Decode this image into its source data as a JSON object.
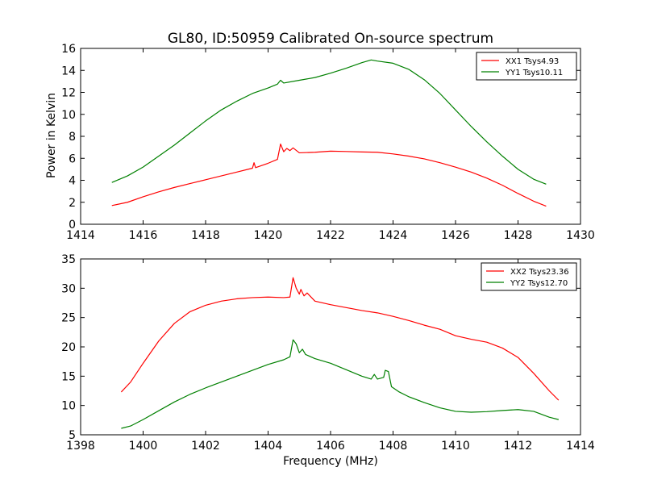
{
  "chart_data": [
    {
      "type": "line",
      "title": "GL80, ID:50959 Calibrated On-source spectrum",
      "xlabel": "",
      "ylabel": "Power in Kelvin",
      "xlim": [
        1414,
        1430
      ],
      "ylim": [
        0,
        16
      ],
      "xticks": [
        1414,
        1416,
        1418,
        1420,
        1422,
        1424,
        1426,
        1428,
        1430
      ],
      "yticks": [
        0,
        2,
        4,
        6,
        8,
        10,
        12,
        14,
        16
      ],
      "legend_position": "top-right",
      "series": [
        {
          "name": "XX1 Tsys4.93",
          "color": "#ff0000",
          "points": [
            [
              1415.0,
              1.7
            ],
            [
              1415.5,
              2.0
            ],
            [
              1416.0,
              2.5
            ],
            [
              1416.5,
              2.95
            ],
            [
              1417.0,
              3.35
            ],
            [
              1417.5,
              3.7
            ],
            [
              1418.0,
              4.05
            ],
            [
              1418.5,
              4.4
            ],
            [
              1419.0,
              4.75
            ],
            [
              1419.5,
              5.1
            ],
            [
              1419.55,
              5.6
            ],
            [
              1419.6,
              5.15
            ],
            [
              1420.0,
              5.55
            ],
            [
              1420.3,
              5.9
            ],
            [
              1420.4,
              7.3
            ],
            [
              1420.5,
              6.6
            ],
            [
              1420.6,
              6.9
            ],
            [
              1420.7,
              6.7
            ],
            [
              1420.8,
              6.95
            ],
            [
              1421.0,
              6.5
            ],
            [
              1421.5,
              6.55
            ],
            [
              1422.0,
              6.65
            ],
            [
              1422.5,
              6.62
            ],
            [
              1423.0,
              6.58
            ],
            [
              1423.5,
              6.55
            ],
            [
              1424.0,
              6.4
            ],
            [
              1424.5,
              6.2
            ],
            [
              1425.0,
              5.95
            ],
            [
              1425.5,
              5.6
            ],
            [
              1426.0,
              5.2
            ],
            [
              1426.5,
              4.75
            ],
            [
              1427.0,
              4.2
            ],
            [
              1427.5,
              3.55
            ],
            [
              1428.0,
              2.8
            ],
            [
              1428.5,
              2.1
            ],
            [
              1428.9,
              1.65
            ]
          ]
        },
        {
          "name": "YY1 Tsys10.11",
          "color": "#008000",
          "points": [
            [
              1415.0,
              3.8
            ],
            [
              1415.5,
              4.4
            ],
            [
              1416.0,
              5.2
            ],
            [
              1416.5,
              6.2
            ],
            [
              1417.0,
              7.2
            ],
            [
              1417.5,
              8.3
            ],
            [
              1418.0,
              9.4
            ],
            [
              1418.5,
              10.4
            ],
            [
              1419.0,
              11.2
            ],
            [
              1419.5,
              11.9
            ],
            [
              1420.0,
              12.4
            ],
            [
              1420.3,
              12.75
            ],
            [
              1420.4,
              13.1
            ],
            [
              1420.5,
              12.85
            ],
            [
              1421.0,
              13.1
            ],
            [
              1421.5,
              13.35
            ],
            [
              1422.0,
              13.75
            ],
            [
              1422.5,
              14.2
            ],
            [
              1423.0,
              14.7
            ],
            [
              1423.3,
              14.95
            ],
            [
              1423.5,
              14.85
            ],
            [
              1424.0,
              14.65
            ],
            [
              1424.5,
              14.1
            ],
            [
              1425.0,
              13.15
            ],
            [
              1425.5,
              11.9
            ],
            [
              1426.0,
              10.4
            ],
            [
              1426.5,
              8.9
            ],
            [
              1427.0,
              7.5
            ],
            [
              1427.5,
              6.2
            ],
            [
              1428.0,
              5.0
            ],
            [
              1428.5,
              4.1
            ],
            [
              1428.9,
              3.65
            ]
          ]
        }
      ]
    },
    {
      "type": "line",
      "title": "",
      "xlabel": "Frequency (MHz)",
      "ylabel": "",
      "xlim": [
        1398,
        1414
      ],
      "ylim": [
        5,
        35
      ],
      "xticks": [
        1398,
        1400,
        1402,
        1404,
        1406,
        1408,
        1410,
        1412,
        1414
      ],
      "yticks": [
        5,
        10,
        15,
        20,
        25,
        30,
        35
      ],
      "legend_position": "top-right",
      "series": [
        {
          "name": "XX2 Tsys23.36",
          "color": "#ff0000",
          "points": [
            [
              1399.3,
              12.3
            ],
            [
              1399.6,
              14.0
            ],
            [
              1400.0,
              17.2
            ],
            [
              1400.5,
              21.0
            ],
            [
              1401.0,
              24.0
            ],
            [
              1401.5,
              26.0
            ],
            [
              1402.0,
              27.1
            ],
            [
              1402.5,
              27.8
            ],
            [
              1403.0,
              28.2
            ],
            [
              1403.5,
              28.4
            ],
            [
              1404.0,
              28.5
            ],
            [
              1404.5,
              28.4
            ],
            [
              1404.7,
              28.5
            ],
            [
              1404.8,
              31.8
            ],
            [
              1404.9,
              30.0
            ],
            [
              1405.0,
              29.0
            ],
            [
              1405.05,
              29.8
            ],
            [
              1405.15,
              28.7
            ],
            [
              1405.25,
              29.2
            ],
            [
              1405.5,
              27.8
            ],
            [
              1406.0,
              27.2
            ],
            [
              1406.5,
              26.7
            ],
            [
              1407.0,
              26.2
            ],
            [
              1407.5,
              25.8
            ],
            [
              1408.0,
              25.2
            ],
            [
              1408.5,
              24.5
            ],
            [
              1409.0,
              23.7
            ],
            [
              1409.5,
              23.0
            ],
            [
              1410.0,
              21.9
            ],
            [
              1410.5,
              21.3
            ],
            [
              1411.0,
              20.8
            ],
            [
              1411.5,
              19.8
            ],
            [
              1412.0,
              18.2
            ],
            [
              1412.5,
              15.5
            ],
            [
              1413.0,
              12.5
            ],
            [
              1413.3,
              10.9
            ]
          ]
        },
        {
          "name": "YY2 Tsys12.70",
          "color": "#008000",
          "points": [
            [
              1399.3,
              6.1
            ],
            [
              1399.6,
              6.5
            ],
            [
              1400.0,
              7.6
            ],
            [
              1400.5,
              9.1
            ],
            [
              1401.0,
              10.6
            ],
            [
              1401.5,
              11.9
            ],
            [
              1402.0,
              13.0
            ],
            [
              1402.5,
              14.0
            ],
            [
              1403.0,
              15.0
            ],
            [
              1403.5,
              16.0
            ],
            [
              1404.0,
              17.0
            ],
            [
              1404.5,
              17.8
            ],
            [
              1404.7,
              18.3
            ],
            [
              1404.8,
              21.2
            ],
            [
              1404.9,
              20.5
            ],
            [
              1405.0,
              19.0
            ],
            [
              1405.1,
              19.6
            ],
            [
              1405.2,
              18.7
            ],
            [
              1405.5,
              18.0
            ],
            [
              1406.0,
              17.2
            ],
            [
              1406.5,
              16.1
            ],
            [
              1407.0,
              15.0
            ],
            [
              1407.3,
              14.5
            ],
            [
              1407.4,
              15.3
            ],
            [
              1407.5,
              14.5
            ],
            [
              1407.7,
              14.8
            ],
            [
              1407.75,
              16.0
            ],
            [
              1407.85,
              15.8
            ],
            [
              1407.95,
              13.2
            ],
            [
              1408.2,
              12.3
            ],
            [
              1408.5,
              11.5
            ],
            [
              1409.0,
              10.5
            ],
            [
              1409.5,
              9.6
            ],
            [
              1410.0,
              9.0
            ],
            [
              1410.5,
              8.85
            ],
            [
              1411.0,
              8.95
            ],
            [
              1411.5,
              9.15
            ],
            [
              1412.0,
              9.3
            ],
            [
              1412.5,
              9.0
            ],
            [
              1413.0,
              8.0
            ],
            [
              1413.3,
              7.6
            ]
          ]
        }
      ]
    }
  ]
}
